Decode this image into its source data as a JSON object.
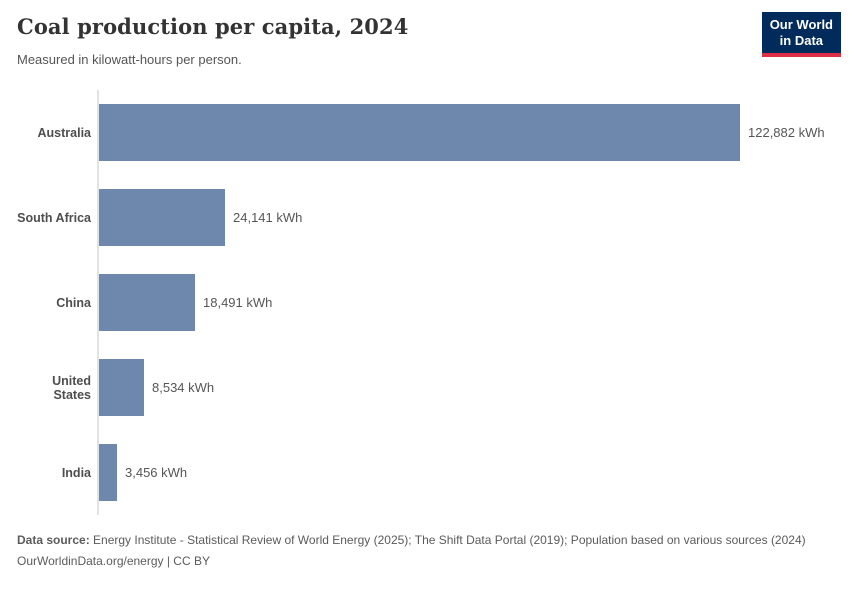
{
  "header": {
    "title": "Coal production per capita, 2024",
    "subtitle": "Measured in kilowatt-hours per person.",
    "logo": {
      "line1": "Our World",
      "line2": "in Data"
    }
  },
  "chart_data": {
    "type": "bar",
    "orientation": "horizontal",
    "title": "Coal production per capita, 2024",
    "subtitle": "Measured in kilowatt-hours per person.",
    "categories": [
      "Australia",
      "South Africa",
      "China",
      "United States",
      "India"
    ],
    "values": [
      122882,
      24141,
      18491,
      8534,
      3456
    ],
    "value_labels": [
      "122,882 kWh",
      "24,141 kWh",
      "18,491 kWh",
      "8,534 kWh",
      "3,456 kWh"
    ],
    "unit": "kWh",
    "xlabel": "",
    "ylabel": "",
    "xlim": [
      0,
      122882
    ],
    "grid": false,
    "legend": false,
    "bar_color": "#6e87ac"
  },
  "footer": {
    "data_source_label": "Data source:",
    "data_source_text": " Energy Institute - Statistical Review of World Energy (2025); The Shift Data Portal (2019); Population based on various sources (2024)",
    "link_line": "OurWorldinData.org/energy | CC BY"
  },
  "colors": {
    "bar": "#6e87ac",
    "axis_line": "#e2e2e2",
    "logo_background": "#002b5b",
    "logo_stripe": "#dc2e45",
    "title_text": "#333333",
    "muted_text": "#555555"
  }
}
